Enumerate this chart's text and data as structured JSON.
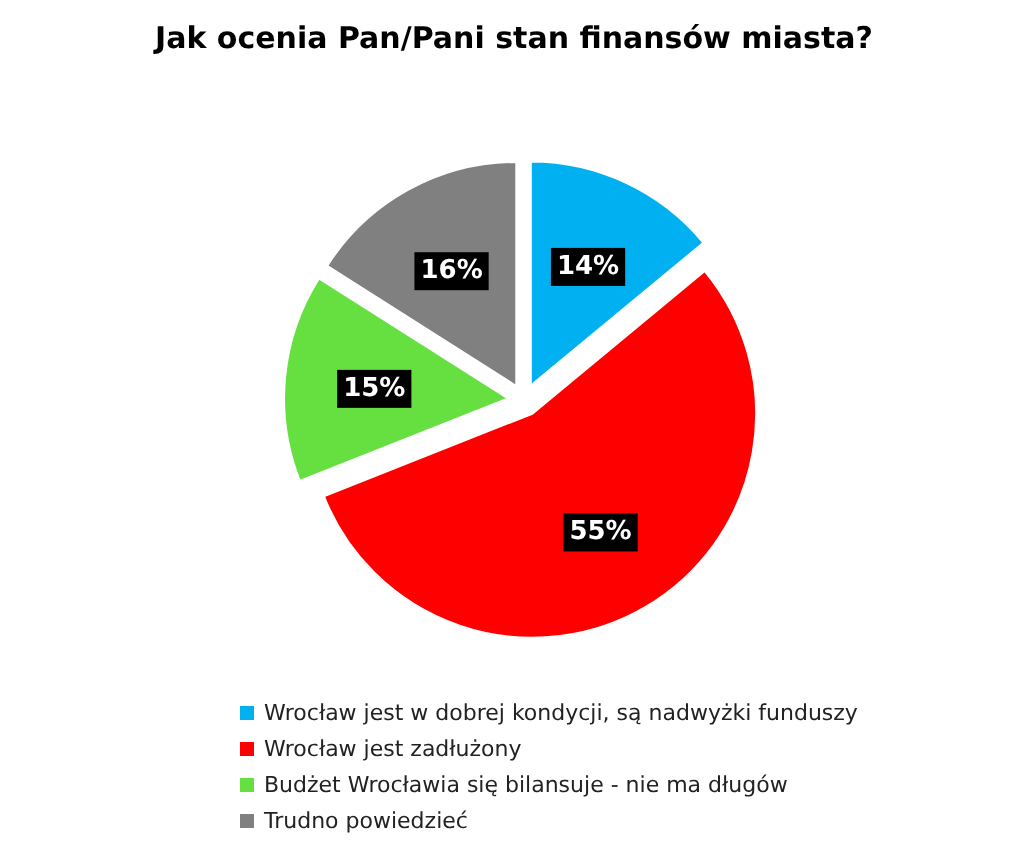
{
  "chart_data": {
    "type": "pie",
    "title": "Jak ocenia Pan/Pani stan finansów miasta?",
    "categories": [
      "Wrocław jest w dobrej kondycji, są nadwyżki funduszy",
      "Wrocław jest zadłużony",
      "Budżet Wrocławia się bilansuje - nie ma długów",
      "Trudno powiedzieć"
    ],
    "values": [
      14,
      55,
      15,
      16
    ],
    "colors": [
      "#00b0f0",
      "#ff0000",
      "#66e040",
      "#808080"
    ],
    "value_labels": [
      "14%",
      "55%",
      "15%",
      "16%"
    ],
    "legend": "bottom"
  }
}
